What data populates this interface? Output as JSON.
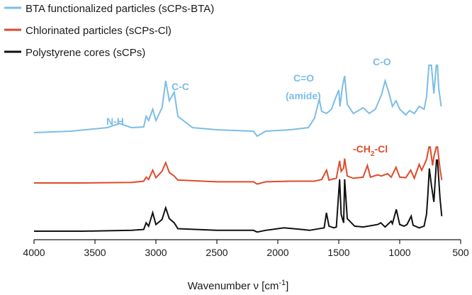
{
  "chart_data": {
    "type": "line",
    "title": "",
    "xlabel": "Wavenumber ν [cm",
    "xlabel_sup": "-1",
    "xlabel_suffix": "]",
    "ylabel": "",
    "xlim": [
      4000,
      500
    ],
    "x_ticks": [
      "4000",
      "3500",
      "3000",
      "2500",
      "2000",
      "1500",
      "1000",
      "500"
    ],
    "x_tick_values": [
      4000,
      3500,
      3000,
      2500,
      2000,
      1500,
      1000,
      500
    ],
    "legend": "top-left",
    "series": [
      {
        "name": "BTA functionalized particles (sCPs-BTA)",
        "color": "#7cbde6",
        "points": [
          [
            4000,
            0.05
          ],
          [
            3700,
            0.07
          ],
          [
            3400,
            0.12
          ],
          [
            3300,
            0.18
          ],
          [
            3200,
            0.12
          ],
          [
            3100,
            0.13
          ],
          [
            3080,
            0.28
          ],
          [
            3060,
            0.22
          ],
          [
            3026,
            0.38
          ],
          [
            3000,
            0.22
          ],
          [
            2950,
            0.4
          ],
          [
            2920,
            0.78
          ],
          [
            2890,
            0.5
          ],
          [
            2850,
            0.62
          ],
          [
            2820,
            0.28
          ],
          [
            2700,
            0.12
          ],
          [
            2500,
            0.09
          ],
          [
            2200,
            0.07
          ],
          [
            2170,
            0.0
          ],
          [
            2100,
            0.07
          ],
          [
            1900,
            0.09
          ],
          [
            1750,
            0.12
          ],
          [
            1700,
            0.25
          ],
          [
            1660,
            0.52
          ],
          [
            1640,
            0.35
          ],
          [
            1600,
            0.32
          ],
          [
            1560,
            0.38
          ],
          [
            1530,
            0.52
          ],
          [
            1500,
            0.65
          ],
          [
            1490,
            0.42
          ],
          [
            1470,
            0.7
          ],
          [
            1452,
            0.85
          ],
          [
            1430,
            0.45
          ],
          [
            1380,
            0.32
          ],
          [
            1300,
            0.4
          ],
          [
            1250,
            0.32
          ],
          [
            1200,
            0.38
          ],
          [
            1150,
            0.58
          ],
          [
            1120,
            0.78
          ],
          [
            1090,
            0.62
          ],
          [
            1060,
            0.42
          ],
          [
            1030,
            0.5
          ],
          [
            1000,
            0.38
          ],
          [
            950,
            0.3
          ],
          [
            920,
            0.36
          ],
          [
            880,
            0.32
          ],
          [
            840,
            0.42
          ],
          [
            800,
            0.38
          ],
          [
            780,
            0.55
          ],
          [
            760,
            1.0
          ],
          [
            740,
            1.0
          ],
          [
            720,
            0.6
          ],
          [
            700,
            1.0
          ],
          [
            690,
            1.0
          ],
          [
            680,
            0.68
          ],
          [
            660,
            0.42
          ]
        ]
      },
      {
        "name": "Chlorinated particles (sCPs-Cl)",
        "color": "#e04a2a",
        "points": [
          [
            4000,
            0.0
          ],
          [
            3600,
            0.0
          ],
          [
            3200,
            0.01
          ],
          [
            3100,
            0.03
          ],
          [
            3080,
            0.1
          ],
          [
            3060,
            0.06
          ],
          [
            3026,
            0.22
          ],
          [
            3000,
            0.09
          ],
          [
            2950,
            0.2
          ],
          [
            2920,
            0.35
          ],
          [
            2890,
            0.18
          ],
          [
            2850,
            0.12
          ],
          [
            2820,
            0.05
          ],
          [
            2500,
            0.02
          ],
          [
            2200,
            0.02
          ],
          [
            2170,
            -0.02
          ],
          [
            2100,
            0.02
          ],
          [
            1900,
            0.03
          ],
          [
            1700,
            0.03
          ],
          [
            1640,
            0.06
          ],
          [
            1600,
            0.22
          ],
          [
            1580,
            0.05
          ],
          [
            1520,
            0.08
          ],
          [
            1493,
            0.38
          ],
          [
            1480,
            0.2
          ],
          [
            1460,
            0.26
          ],
          [
            1452,
            0.42
          ],
          [
            1430,
            0.12
          ],
          [
            1380,
            0.08
          ],
          [
            1300,
            0.1
          ],
          [
            1265,
            0.3
          ],
          [
            1240,
            0.1
          ],
          [
            1180,
            0.14
          ],
          [
            1150,
            0.12
          ],
          [
            1100,
            0.16
          ],
          [
            1070,
            0.1
          ],
          [
            1030,
            0.27
          ],
          [
            1000,
            0.1
          ],
          [
            950,
            0.09
          ],
          [
            910,
            0.22
          ],
          [
            880,
            0.08
          ],
          [
            840,
            0.32
          ],
          [
            820,
            0.22
          ],
          [
            780,
            0.4
          ],
          [
            760,
            0.62
          ],
          [
            750,
            0.62
          ],
          [
            730,
            0.3
          ],
          [
            720,
            0.45
          ],
          [
            700,
            0.62
          ],
          [
            690,
            0.62
          ],
          [
            670,
            0.25
          ],
          [
            655,
            0.05
          ]
        ]
      },
      {
        "name": "Polystyrene cores (sCPs)",
        "color": "#111111",
        "points": [
          [
            4000,
            0.0
          ],
          [
            3600,
            0.0
          ],
          [
            3200,
            0.01
          ],
          [
            3100,
            0.02
          ],
          [
            3080,
            0.1
          ],
          [
            3060,
            0.06
          ],
          [
            3026,
            0.22
          ],
          [
            3000,
            0.08
          ],
          [
            2950,
            0.14
          ],
          [
            2920,
            0.28
          ],
          [
            2890,
            0.15
          ],
          [
            2850,
            0.1
          ],
          [
            2820,
            0.03
          ],
          [
            2500,
            0.01
          ],
          [
            2200,
            0.01
          ],
          [
            2170,
            -0.01
          ],
          [
            2100,
            0.01
          ],
          [
            1950,
            0.04
          ],
          [
            1870,
            0.03
          ],
          [
            1800,
            0.02
          ],
          [
            1740,
            0.01
          ],
          [
            1620,
            0.04
          ],
          [
            1601,
            0.22
          ],
          [
            1580,
            0.06
          ],
          [
            1540,
            0.04
          ],
          [
            1520,
            0.05
          ],
          [
            1493,
            0.62
          ],
          [
            1480,
            0.2
          ],
          [
            1460,
            0.1
          ],
          [
            1452,
            0.62
          ],
          [
            1430,
            0.15
          ],
          [
            1370,
            0.06
          ],
          [
            1300,
            0.05
          ],
          [
            1180,
            0.08
          ],
          [
            1155,
            0.1
          ],
          [
            1120,
            0.05
          ],
          [
            1070,
            0.12
          ],
          [
            1060,
            0.09
          ],
          [
            1028,
            0.26
          ],
          [
            1000,
            0.08
          ],
          [
            965,
            0.06
          ],
          [
            940,
            0.08
          ],
          [
            906,
            0.18
          ],
          [
            890,
            0.07
          ],
          [
            840,
            0.04
          ],
          [
            800,
            0.06
          ],
          [
            780,
            0.2
          ],
          [
            770,
            0.42
          ],
          [
            757,
            0.75
          ],
          [
            740,
            0.55
          ],
          [
            720,
            0.35
          ],
          [
            698,
            0.85
          ],
          [
            690,
            0.85
          ],
          [
            670,
            0.4
          ],
          [
            655,
            0.18
          ]
        ]
      }
    ],
    "annotations": [
      {
        "text": "N-H",
        "series": "BTA"
      },
      {
        "text": "C-C",
        "series": "BTA"
      },
      {
        "text": "C=O",
        "series": "BTA"
      },
      {
        "text": "(amide)",
        "series": "BTA"
      },
      {
        "text": "C-O",
        "series": "BTA"
      },
      {
        "text": "-CH",
        "sub": "2",
        "suffix": "-Cl",
        "series": "Cl"
      }
    ]
  }
}
